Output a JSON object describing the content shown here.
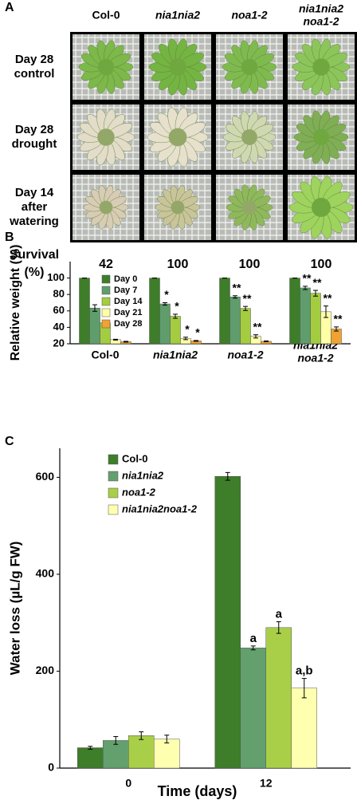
{
  "panel_a": {
    "label": "A",
    "columns": [
      "Col-0",
      "nia1nia2",
      "noa1-2",
      [
        "nia1nia2",
        "noa1-2"
      ]
    ],
    "rows": [
      [
        "Day 28",
        "control"
      ],
      [
        "Day 28",
        "drought"
      ],
      [
        "Day 14",
        "after",
        "watering"
      ]
    ],
    "survival_label": [
      "Survival",
      "(%)"
    ],
    "survival": [
      42,
      100,
      100,
      100
    ]
  },
  "chart_data": [
    {
      "type": "bar",
      "label": "B",
      "ylabel": "Relative weight (%)",
      "categories": [
        "Col-0",
        "nia1nia2",
        "noa1-2",
        [
          "nia1nia2",
          "noa1-2"
        ]
      ],
      "series": [
        {
          "name": "Day 0",
          "color": "#3e7d2a",
          "values": [
            100,
            100,
            100,
            100
          ],
          "errors": [
            0,
            0,
            0,
            0
          ],
          "annotations": [
            null,
            null,
            null,
            null
          ]
        },
        {
          "name": "Day 7",
          "color": "#5f9d6c",
          "values": [
            63.5,
            68.5,
            77,
            88
          ],
          "errors": [
            4,
            1.5,
            1.5,
            2
          ],
          "annotations": [
            null,
            "*",
            "**",
            "**"
          ]
        },
        {
          "name": "Day 14",
          "color": "#a4cc40",
          "values": [
            45.5,
            53.5,
            63,
            81.5
          ],
          "errors": [
            2.5,
            2.5,
            2.5,
            3.5
          ],
          "annotations": [
            null,
            "*",
            "**",
            "**"
          ]
        },
        {
          "name": "Day 21",
          "color": "#ffffa8",
          "values": [
            25,
            26.5,
            29,
            59
          ],
          "errors": [
            0.5,
            1.5,
            2,
            7
          ],
          "annotations": [
            null,
            "*",
            "**",
            "**"
          ]
        },
        {
          "name": "Day 28",
          "color": "#f0a232",
          "values": [
            22.5,
            23.5,
            23,
            38
          ],
          "errors": [
            0.5,
            0.5,
            0.5,
            2.5
          ],
          "annotations": [
            null,
            "*",
            null,
            "**"
          ]
        }
      ],
      "ylim": [
        20,
        120
      ],
      "yticks": [
        20,
        40,
        60,
        80,
        100
      ],
      "legend": "upper left"
    },
    {
      "type": "bar",
      "label": "C",
      "ylabel": "Water loss (µL/g FW)",
      "xlabel": "Time (days)",
      "categories": [
        "0",
        "12"
      ],
      "series": [
        {
          "name": "Col-0",
          "color": "#3e7d2a",
          "values": [
            42,
            602
          ],
          "errors": [
            3,
            8
          ],
          "annotations": [
            null,
            null
          ]
        },
        {
          "name": "nia1nia2",
          "color": "#63a06e",
          "values": [
            57,
            248
          ],
          "errors": [
            8,
            4
          ],
          "annotations": [
            null,
            "a"
          ]
        },
        {
          "name": "noa1-2",
          "color": "#a9cf48",
          "values": [
            67,
            290
          ],
          "errors": [
            8,
            12
          ],
          "annotations": [
            null,
            "a"
          ]
        },
        {
          "name": "nia1nia2noa1-2",
          "color": "#ffffb0",
          "values": [
            60,
            165
          ],
          "errors": [
            8,
            20
          ],
          "annotations": [
            null,
            "a,b"
          ]
        }
      ],
      "ylim": [
        0,
        660
      ],
      "yticks": [
        0,
        200,
        400,
        600
      ],
      "legend": "upper left"
    }
  ]
}
